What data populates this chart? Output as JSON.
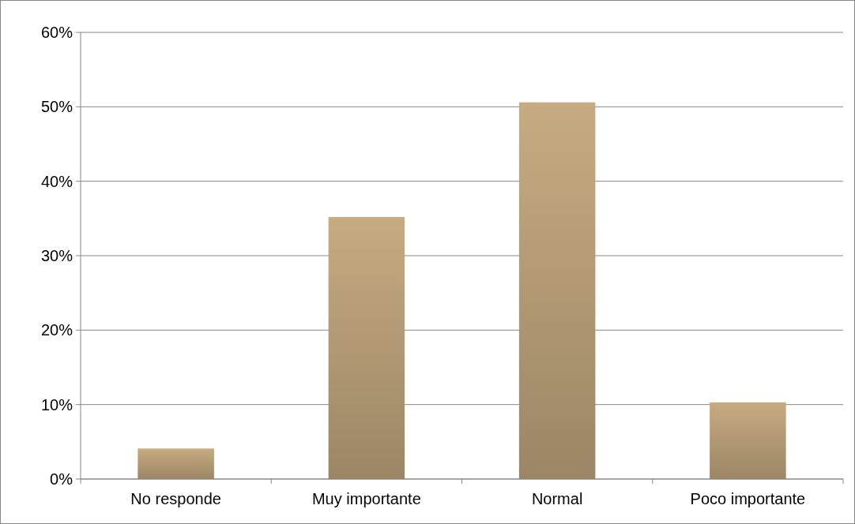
{
  "chart_data": {
    "type": "bar",
    "categories": [
      "No responde",
      "Muy importante",
      "Normal",
      "Poco importante"
    ],
    "values": [
      4.1,
      35.2,
      50.6,
      10.3
    ],
    "color": "#b39a74",
    "ylim": [
      0,
      60
    ],
    "yticks": [
      {
        "value": 0,
        "label": "0%"
      },
      {
        "value": 10,
        "label": "10%"
      },
      {
        "value": 20,
        "label": "20%"
      },
      {
        "value": 30,
        "label": "30%"
      },
      {
        "value": 40,
        "label": "40%"
      },
      {
        "value": 50,
        "label": "50%"
      },
      {
        "value": 60,
        "label": "60%"
      }
    ],
    "grid": "y"
  }
}
